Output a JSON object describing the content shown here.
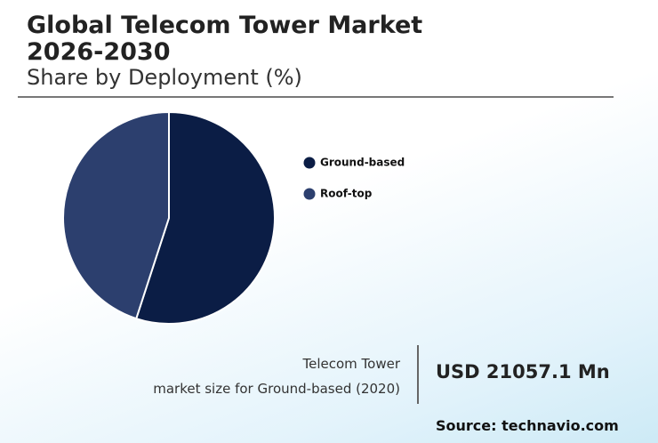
{
  "chart_data": {
    "type": "pie",
    "title": "Global Telecom Tower Market 2026-2030",
    "subtitle": "Share by Deployment (%)",
    "categories": [
      "Ground-based",
      "Roof-top"
    ],
    "values": [
      55,
      45
    ],
    "colors": [
      "#0b1d45",
      "#2c3f6e"
    ],
    "annotation": {
      "label_line1": "Telecom Tower",
      "label_line2": "market size for Ground-based (2020)",
      "value": "USD 21057.1 Mn"
    },
    "source": "Source: technavio.com"
  }
}
